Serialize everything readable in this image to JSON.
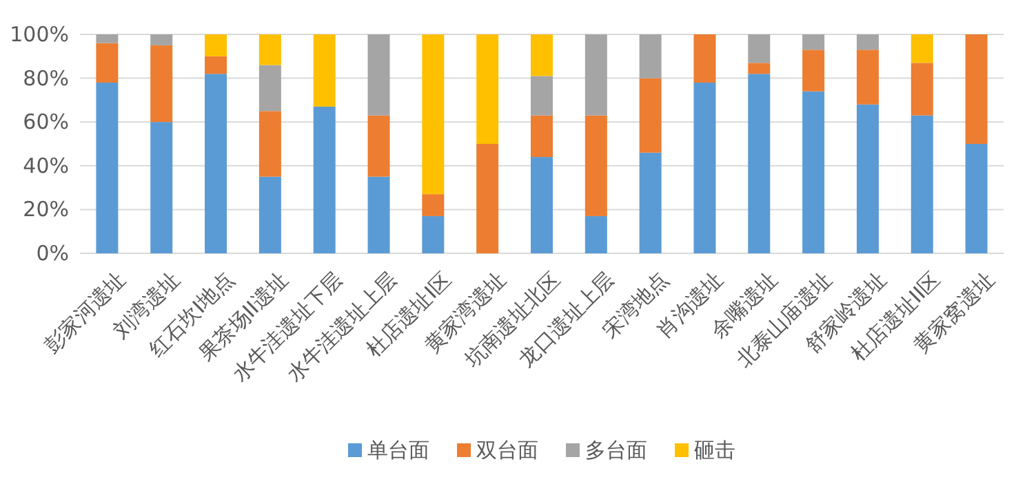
{
  "chart_data": {
    "type": "bar",
    "stacked": true,
    "grid": "y",
    "legend": "bottom",
    "categories": [
      "彭家河遗址",
      "刘湾遗址",
      "红石坎I地点",
      "果茶场II遗址",
      "水牛洼遗址下层",
      "水牛洼遗址上层",
      "杜店遗址I区",
      "黄家湾遗址",
      "坑南遗址北区",
      "龙口遗址上层",
      "宋湾地点",
      "肖沟遗址",
      "余嘴遗址",
      "北泰山庙遗址",
      "舒家岭遗址",
      "杜店遗址II区",
      "黄家窝遗址"
    ],
    "ylim": [
      0,
      100
    ],
    "yticks": [
      {
        "value": 0,
        "label": "0%"
      },
      {
        "value": 20,
        "label": "20%"
      },
      {
        "value": 40,
        "label": "40%"
      },
      {
        "value": 60,
        "label": "60%"
      },
      {
        "value": 80,
        "label": "80%"
      },
      {
        "value": 100,
        "label": "100%"
      }
    ],
    "series": [
      {
        "name": "单台面",
        "color": "#5b9bd5",
        "values": [
          78,
          60,
          82,
          35,
          67,
          35,
          17,
          0,
          44,
          17,
          46,
          78,
          82,
          74,
          68,
          63,
          50
        ]
      },
      {
        "name": "双台面",
        "color": "#ed7d31",
        "values": [
          18,
          35,
          8,
          30,
          0,
          28,
          10,
          50,
          19,
          46,
          34,
          22,
          5,
          19,
          25,
          24,
          50
        ]
      },
      {
        "name": "多台面",
        "color": "#a5a5a5",
        "values": [
          4,
          5,
          0,
          21,
          0,
          37,
          0,
          0,
          18,
          37,
          20,
          0,
          13,
          7,
          7,
          0,
          0
        ]
      },
      {
        "name": "砸击",
        "color": "#ffc000",
        "values": [
          0,
          0,
          10,
          14,
          33,
          0,
          73,
          50,
          19,
          0,
          0,
          0,
          0,
          0,
          0,
          13,
          0
        ]
      }
    ]
  }
}
